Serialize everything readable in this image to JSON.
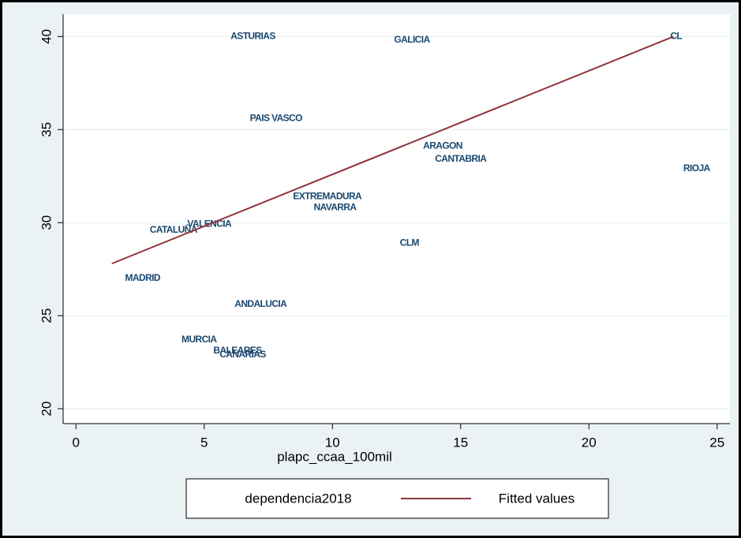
{
  "chart_data": {
    "type": "scatter",
    "xlabel": "plapc_ccaa_100mil",
    "xlim": [
      -0.5,
      25.5
    ],
    "xticks": [
      0,
      5,
      10,
      15,
      20,
      25
    ],
    "ylim": [
      19.2,
      41.2
    ],
    "yticks": [
      20,
      25,
      30,
      35,
      40
    ],
    "grid": true,
    "legend": "bottom",
    "series": [
      {
        "name": "dependencia2018",
        "color": "#1a476f",
        "labels": [
          "ASTURIAS",
          "GALICIA",
          "CL",
          "PAIS VASCO",
          "ARAGON",
          "CANTABRIA",
          "RIOJA",
          "EXTREMADURA",
          "NAVARRA",
          "VALENCIA",
          "CATALUÑA",
          "CLM",
          "MADRID",
          "ANDALUCIA",
          "MURCIA",
          "BALEARES",
          "CANARIAS"
        ],
        "x": [
          6.9,
          13.1,
          23.4,
          7.8,
          14.3,
          15.0,
          24.2,
          9.8,
          10.1,
          5.2,
          3.8,
          13.0,
          2.6,
          7.2,
          4.8,
          6.3,
          6.5
        ],
        "values": [
          40.0,
          39.8,
          40.0,
          35.6,
          34.1,
          33.4,
          32.9,
          31.4,
          30.8,
          29.9,
          29.6,
          28.9,
          27.0,
          25.6,
          23.7,
          23.1,
          22.9
        ]
      },
      {
        "name": "Fitted values",
        "type": "line",
        "color": "#90353b",
        "x": [
          1.4,
          23.3
        ],
        "values": [
          27.8,
          40.0
        ]
      }
    ]
  }
}
